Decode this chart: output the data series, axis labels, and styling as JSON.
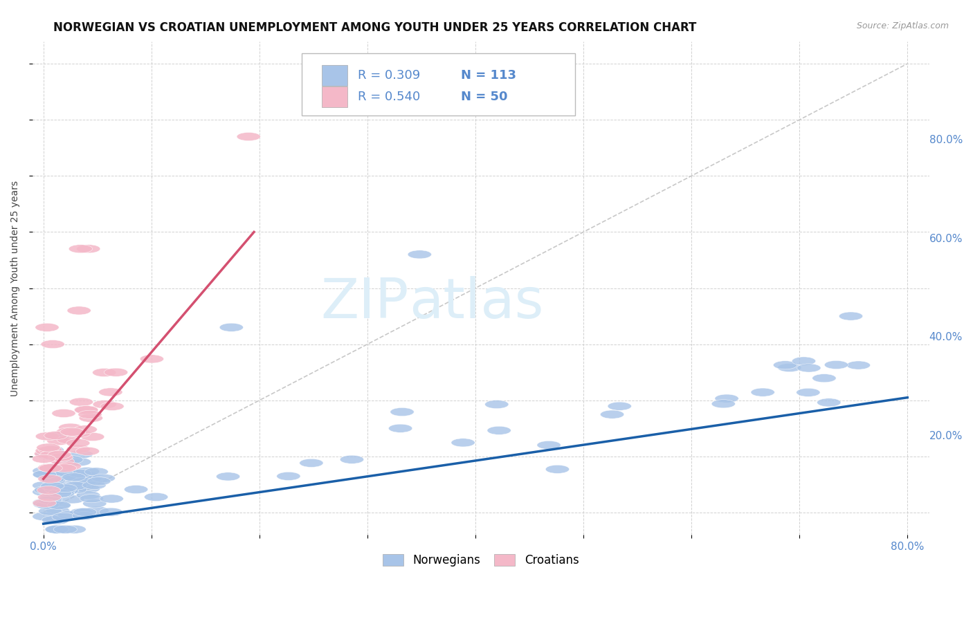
{
  "title": "NORWEGIAN VS CROATIAN UNEMPLOYMENT AMONG YOUTH UNDER 25 YEARS CORRELATION CHART",
  "source": "Source: ZipAtlas.com",
  "ylabel": "Unemployment Among Youth under 25 years",
  "xlim": [
    -0.01,
    0.82
  ],
  "ylim": [
    -0.04,
    0.84
  ],
  "xtick_positions": [
    0.0,
    0.1,
    0.2,
    0.3,
    0.4,
    0.5,
    0.6,
    0.7,
    0.8
  ],
  "ytick_positions": [
    0.0,
    0.1,
    0.2,
    0.3,
    0.4,
    0.5,
    0.6,
    0.7,
    0.8
  ],
  "xticklabels": [
    "0.0%",
    "",
    "",
    "",
    "",
    "",
    "",
    "",
    "80.0%"
  ],
  "yticklabels": [
    "",
    "",
    "20.0%",
    "",
    "40.0%",
    "",
    "60.0%",
    "",
    "80.0%"
  ],
  "legend_text_1": "R = 0.309   N = 113",
  "legend_text_2": "R = 0.540   N = 50",
  "norwegian_color": "#a8c4e8",
  "croatian_color": "#f4b8c8",
  "norwegian_line_color": "#1a5fa8",
  "croatian_line_color": "#d45070",
  "diagonal_color": "#c8c8c8",
  "background_color": "#ffffff",
  "watermark_color": "#ddeef8",
  "watermark_text": "ZIPatlas",
  "grid_color": "#cccccc",
  "tick_color": "#5588cc",
  "title_fontsize": 12,
  "nor_trend_x": [
    0.0,
    0.8
  ],
  "nor_trend_y": [
    -0.02,
    0.205
  ],
  "cro_trend_x": [
    0.0,
    0.195
  ],
  "cro_trend_y": [
    0.06,
    0.5
  ]
}
